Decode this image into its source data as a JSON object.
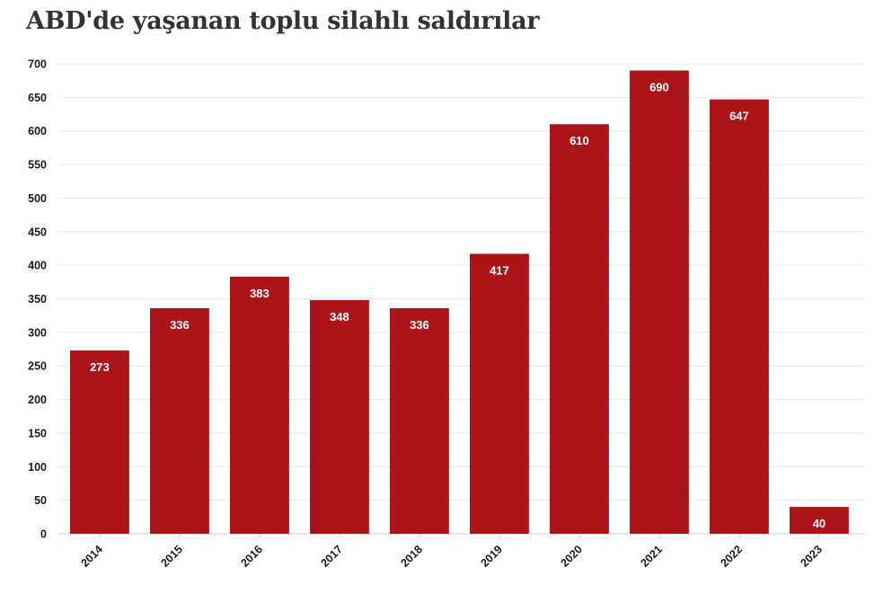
{
  "title": "ABD'de yaşanan toplu silahlı saldırılar",
  "chart_data": {
    "type": "bar",
    "title": "ABD'de yaşanan toplu silahlı saldırılar",
    "xlabel": "",
    "ylabel": "",
    "categories": [
      "2014",
      "2015",
      "2016",
      "2017",
      "2018",
      "2019",
      "2020",
      "2021",
      "2022",
      "2023"
    ],
    "values": [
      273,
      336,
      383,
      348,
      336,
      417,
      610,
      690,
      647,
      40
    ],
    "ylim": [
      0,
      700
    ],
    "yticks": [
      0,
      50,
      100,
      150,
      200,
      250,
      300,
      350,
      400,
      450,
      500,
      550,
      600,
      650,
      700
    ],
    "grid": true,
    "legend": "none",
    "data_labels": true,
    "bar_color": "#ab1519"
  }
}
